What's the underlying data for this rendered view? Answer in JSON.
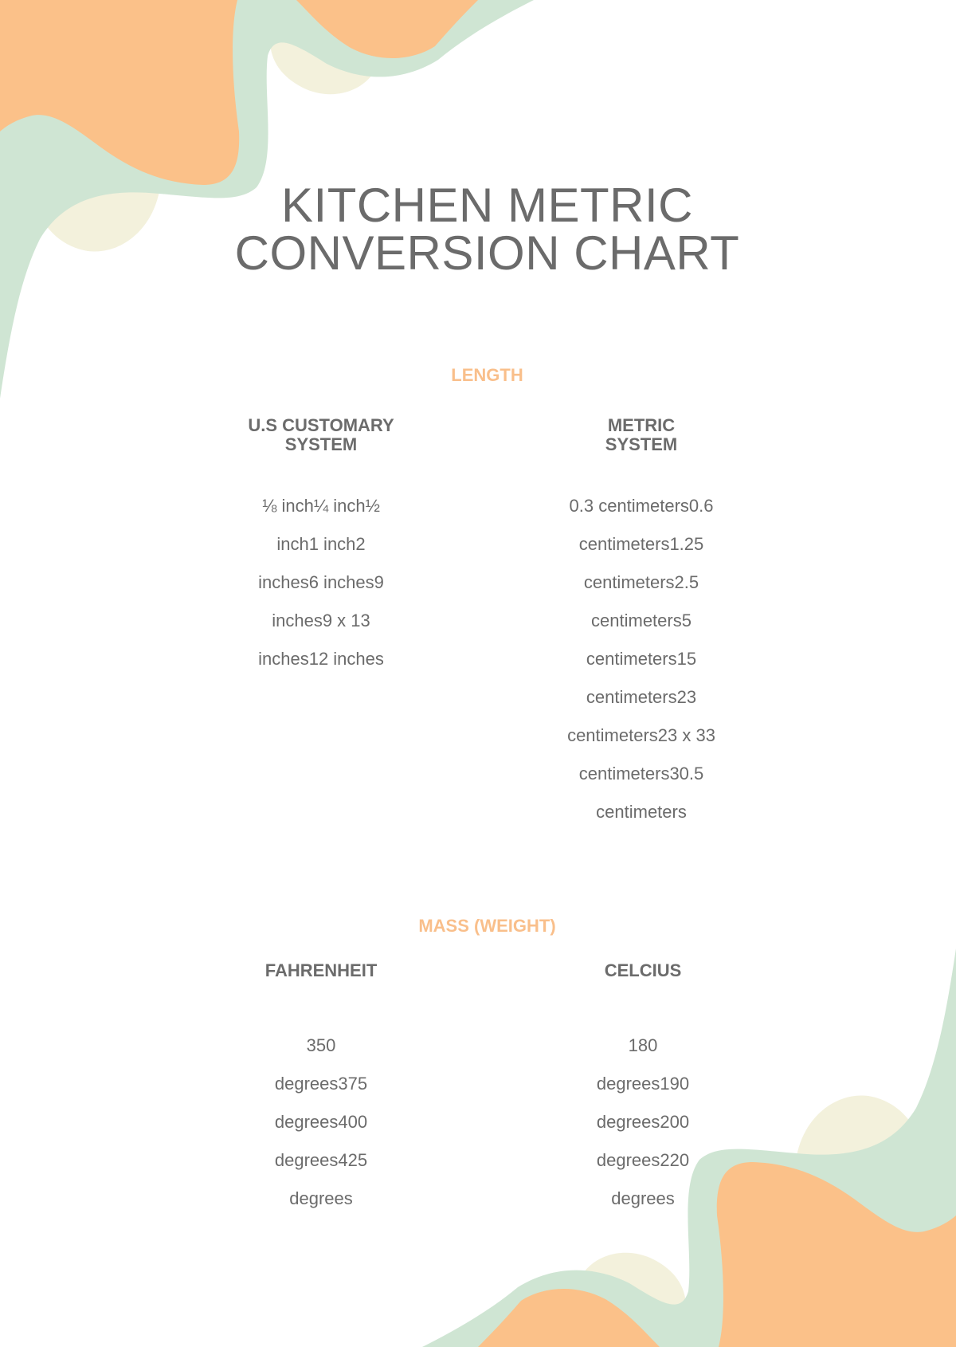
{
  "title": {
    "line1": "KITCHEN METRIC",
    "line2": "CONVERSION CHART"
  },
  "colors": {
    "orange": "#fbc189",
    "green": "#cfe5d3",
    "cream": "#f3f1dc",
    "text": "#6b6b6b",
    "section": "#f9bf8b"
  },
  "length": {
    "heading": "LENGTH",
    "left_header": {
      "line1": "U.S CUSTOMARY",
      "line2": "SYSTEM"
    },
    "right_header": {
      "line1": "METRIC",
      "line2": "SYSTEM"
    },
    "left_rows": [
      "⅛ inch¼ inch½",
      "inch1 inch2",
      "inches6 inches9",
      "inches9 x 13",
      "inches12 inches"
    ],
    "right_rows": [
      "0.3 centimeters0.6",
      "centimeters1.25",
      "centimeters2.5",
      "centimeters5",
      "centimeters15",
      "centimeters23",
      "centimeters23 x 33",
      "centimeters30.5",
      "centimeters"
    ]
  },
  "mass": {
    "heading": "MASS (WEIGHT)",
    "left_header": "FAHRENHEIT",
    "right_header": "CELCIUS",
    "left_rows": [
      "350",
      "degrees375",
      "degrees400",
      "degrees425",
      "degrees"
    ],
    "right_rows": [
      "180",
      "degrees190",
      "degrees200",
      "degrees220",
      "degrees"
    ]
  }
}
